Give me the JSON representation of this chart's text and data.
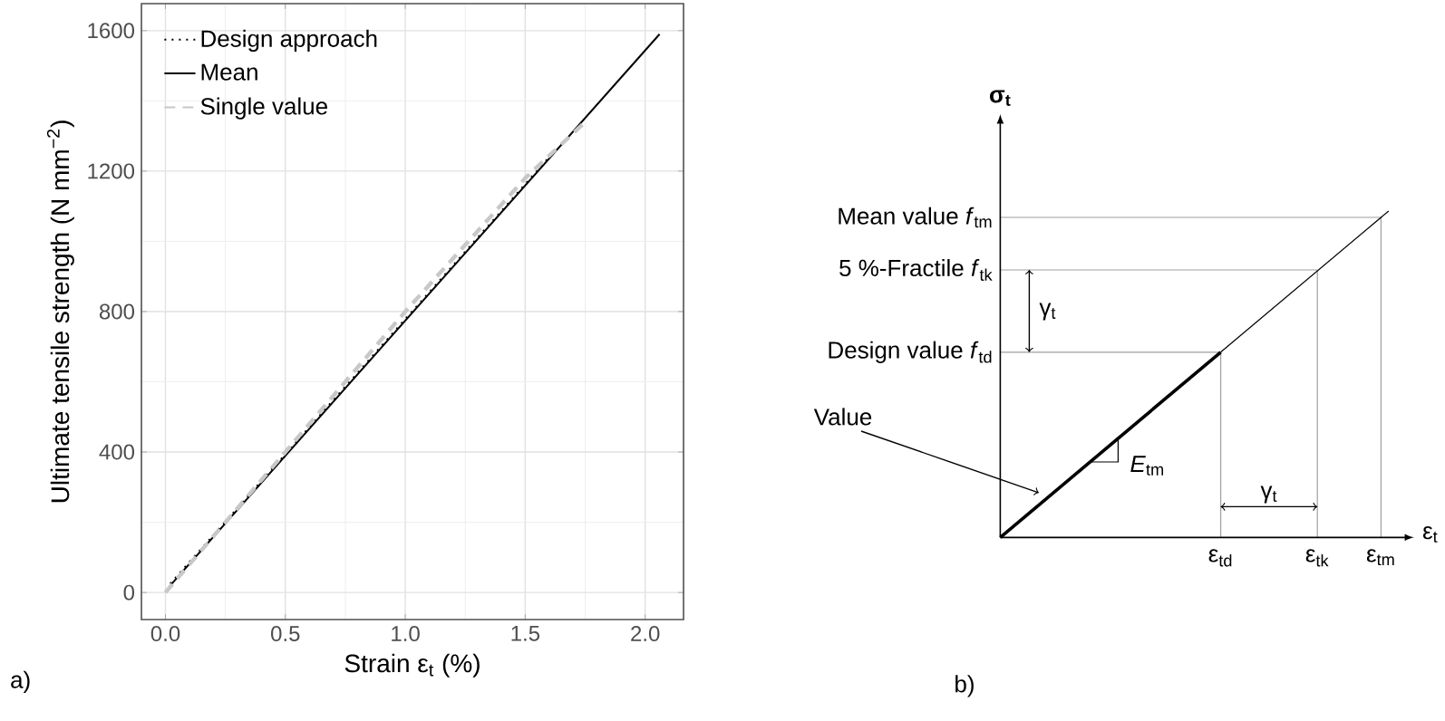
{
  "chart_data": [
    {
      "type": "line",
      "xlabel": "Strain ε$_{t}$ (%)",
      "ylabel": "Ultimate tensile strength (N mm$^{−2}$)",
      "xlim": [
        -0.1,
        2.16
      ],
      "ylim": [
        -77,
        1677
      ],
      "xticks": [
        {
          "value": 0,
          "label": "0.0"
        },
        {
          "value": 0.5,
          "label": "0.5"
        },
        {
          "value": 1,
          "label": "1.0"
        },
        {
          "value": 1.5,
          "label": "1.5"
        },
        {
          "value": 2,
          "label": "2.0"
        }
      ],
      "yticks": [
        0,
        400,
        800,
        1200,
        1600
      ],
      "grid": true,
      "legend": "top left",
      "annotations": [
        "a)"
      ],
      "series": [
        {
          "name": "Design approach",
          "color": "#000000",
          "line_style": "dotted",
          "x": [
            0.02,
            1.6
          ],
          "values": [
            25,
            1240
          ]
        },
        {
          "name": "Mean",
          "color": "#000000",
          "line_style": "solid",
          "x": [
            0.02,
            2.06
          ],
          "values": [
            20,
            1590
          ]
        },
        {
          "name": "Single value",
          "color": "#c8c8c8",
          "line_style": "dashed",
          "x": [
            0,
            0.1,
            0.5,
            1.0,
            1.5,
            1.75
          ],
          "values": [
            0,
            80,
            400,
            800,
            1180,
            1340
          ]
        }
      ]
    },
    {
      "type": "other",
      "xlabel": "ε$_{t}$",
      "ylabel": "σ$_{t}$",
      "annotations": [
        "b)",
        "Mean value  *f*$_{tm}$",
        "5 %-Fractile *f*$_{tk}$",
        "Design value *f*$_{td}$",
        "Value",
        "*E*$_{tm}$",
        "γ$_{t}$",
        "γ$_{t}$",
        "ε$_{td}$",
        "ε$_{tk}$",
        "ε$_{tm}$"
      ]
    }
  ]
}
